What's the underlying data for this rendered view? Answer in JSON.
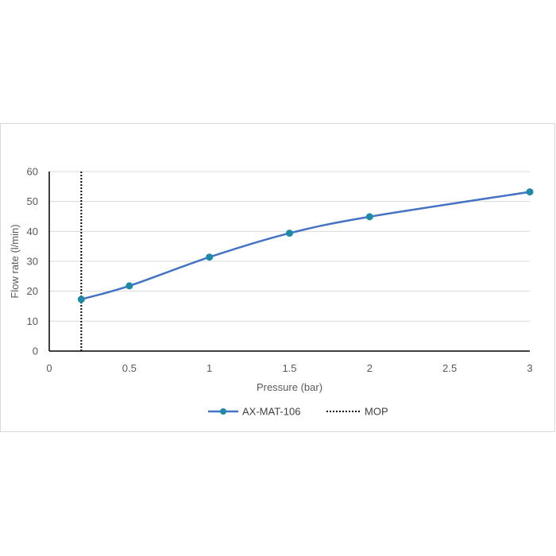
{
  "chart_data": {
    "type": "line",
    "title": "",
    "xlabel": "Pressure (bar)",
    "ylabel": "Flow rate (l/min)",
    "xlim": [
      0,
      3
    ],
    "ylim": [
      0,
      60
    ],
    "xticks": [
      0,
      0.5,
      1,
      1.5,
      2,
      2.5,
      3
    ],
    "xtick_labels": [
      "0",
      "0.5",
      "1",
      "1.5",
      "2",
      "2.5",
      "3"
    ],
    "yticks": [
      0,
      10,
      20,
      30,
      40,
      50,
      60
    ],
    "ytick_labels": [
      "0",
      "10",
      "20",
      "30",
      "40",
      "50",
      "60"
    ],
    "grid": "horizontal",
    "legend_position": "bottom",
    "series": [
      {
        "name": "AX-MAT-106",
        "color": "#4472c4",
        "marker_color": "#1f8aa8",
        "x": [
          0.2,
          0.5,
          1,
          1.5,
          2,
          3
        ],
        "y": [
          17.3,
          21.8,
          31.4,
          39.4,
          44.9,
          53.2
        ]
      }
    ],
    "reference_lines": [
      {
        "name": "MOP",
        "x": 0.2,
        "style": "dotted",
        "color": "#000000"
      }
    ]
  }
}
